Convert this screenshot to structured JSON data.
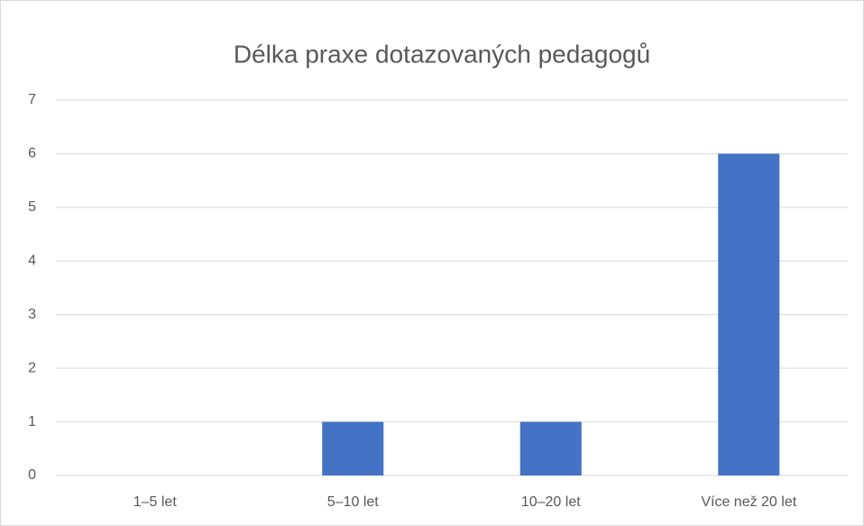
{
  "chart_data": {
    "type": "bar",
    "title": "Délka praxe dotazovaných pedagogů",
    "categories": [
      "1–5 let",
      "5–10 let",
      "10–20 let",
      "Více než 20 let"
    ],
    "values": [
      0,
      1,
      1,
      6
    ],
    "color": "#4472c4",
    "ylim": [
      0,
      7
    ],
    "yticks": [
      0,
      1,
      2,
      3,
      4,
      5,
      6,
      7
    ],
    "grid": true
  }
}
